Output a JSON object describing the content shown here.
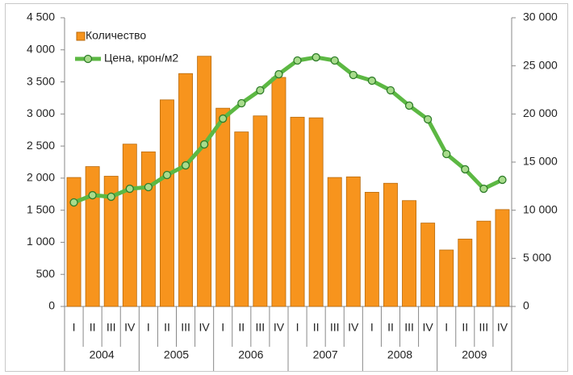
{
  "chart_data": {
    "type": "bar_line",
    "categories": [
      "I",
      "II",
      "III",
      "IV",
      "I",
      "II",
      "III",
      "IV",
      "I",
      "II",
      "III",
      "IV",
      "I",
      "II",
      "III",
      "IV",
      "I",
      "II",
      "III",
      "IV",
      "I",
      "II",
      "III",
      "IV"
    ],
    "groups": [
      "2004",
      "2005",
      "2006",
      "2007",
      "2008",
      "2009"
    ],
    "series": [
      {
        "name": "Количество",
        "type": "bar",
        "color": "#f7941d",
        "axis": "y",
        "values": [
          2010,
          2180,
          2030,
          2530,
          2410,
          3220,
          3630,
          3900,
          3090,
          2720,
          2970,
          3570,
          2950,
          2940,
          2010,
          2020,
          1780,
          1920,
          1650,
          1300,
          880,
          1050,
          1330,
          1510
        ]
      },
      {
        "name": "Цена, крон/м2",
        "type": "line",
        "color": "#5cb843",
        "axis": "y2",
        "values": [
          10810,
          11560,
          11400,
          12230,
          12400,
          13660,
          14660,
          16840,
          19520,
          21120,
          22460,
          24130,
          25560,
          25890,
          25560,
          24050,
          23460,
          22460,
          20870,
          19440,
          15840,
          14250,
          12230,
          13160
        ]
      }
    ],
    "ylim": [
      0,
      4500
    ],
    "yticks": [
      0,
      {
        "value": 500,
        "label": "500"
      },
      {
        "value": 1000,
        "label": "1 000"
      },
      {
        "value": 1500,
        "label": "1 500"
      },
      {
        "value": 2000,
        "label": "2 000"
      },
      {
        "value": 2500,
        "label": "2 500"
      },
      {
        "value": 3000,
        "label": "3 000"
      },
      {
        "value": 3500,
        "label": "3 500"
      },
      {
        "value": 4000,
        "label": "4 000"
      },
      {
        "value": 4500,
        "label": "4 500"
      }
    ],
    "y2lim": [
      0,
      30000
    ],
    "y2ticks": [
      0,
      {
        "value": 5000,
        "label": "5 000"
      },
      {
        "value": 10000,
        "label": "10 000"
      },
      {
        "value": 15000,
        "label": "15 000"
      },
      {
        "value": 20000,
        "label": "20 000"
      },
      {
        "value": 25000,
        "label": "25 000"
      },
      {
        "value": 30000,
        "label": "30 000"
      }
    ]
  }
}
